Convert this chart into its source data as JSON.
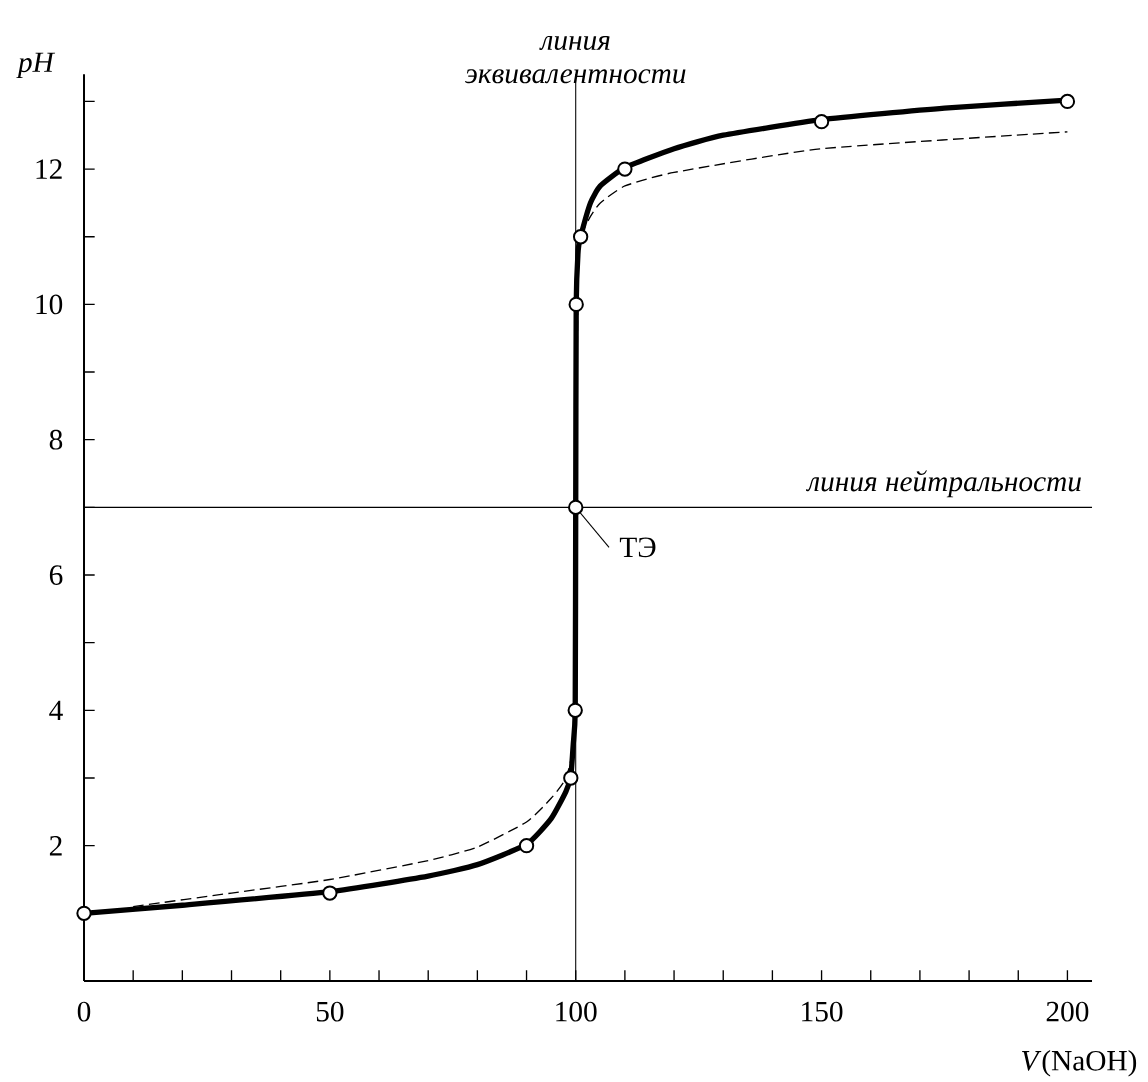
{
  "chart_data": {
    "type": "line",
    "xlabel": "*V*(NaOH)",
    "ylabel": "pH",
    "xlim": [
      0,
      205
    ],
    "ylim": [
      0,
      13.4
    ],
    "xticks": [
      0,
      {
        "value": 10,
        "label": null
      },
      {
        "value": 20,
        "label": null
      },
      {
        "value": 30,
        "label": null
      },
      {
        "value": 40,
        "label": null
      },
      50,
      {
        "value": 60,
        "label": null
      },
      {
        "value": 70,
        "label": null
      },
      {
        "value": 80,
        "label": null
      },
      {
        "value": 90,
        "label": null
      },
      100,
      {
        "value": 110,
        "label": null
      },
      {
        "value": 120,
        "label": null
      },
      {
        "value": 130,
        "label": null
      },
      {
        "value": 140,
        "label": null
      },
      150,
      {
        "value": 160,
        "label": null
      },
      {
        "value": 170,
        "label": null
      },
      {
        "value": 180,
        "label": null
      },
      {
        "value": 190,
        "label": null
      },
      200
    ],
    "yticks": [
      {
        "value": 1,
        "label": null
      },
      2,
      {
        "value": 3,
        "label": null
      },
      4,
      {
        "value": 5,
        "label": null
      },
      6,
      {
        "value": 7,
        "label": null
      },
      8,
      {
        "value": 9,
        "label": null
      },
      10,
      {
        "value": 11,
        "label": null
      },
      12,
      {
        "value": 13,
        "label": null
      }
    ],
    "grid": false,
    "series": [
      {
        "type": "line",
        "color": "#000000",
        "line_style": "solid",
        "marker": "none",
        "x": [
          0,
          20,
          50,
          70,
          80,
          90,
          95,
          98,
          99,
          99.5,
          99.9,
          100,
          100.1,
          100.5,
          101,
          103,
          105,
          110,
          120,
          130,
          150,
          175,
          200
        ],
        "values": [
          1.0,
          1.12,
          1.32,
          1.55,
          1.72,
          2.02,
          2.4,
          2.8,
          3.03,
          3.5,
          4.0,
          7.0,
          10.0,
          10.8,
          11.0,
          11.5,
          11.75,
          12.02,
          12.3,
          12.5,
          12.73,
          12.9,
          13.02
        ]
      },
      {
        "type": "line",
        "color": "#000000",
        "line_style": "dashed",
        "marker": "none",
        "x": [
          10,
          30,
          50,
          70,
          80,
          90,
          95,
          98,
          99.5,
          100,
          100.5,
          101,
          103,
          105,
          110,
          120,
          150,
          200
        ],
        "values": [
          1.1,
          1.3,
          1.5,
          1.78,
          1.98,
          2.35,
          2.7,
          3.0,
          3.6,
          7.0,
          10.5,
          11.0,
          11.3,
          11.5,
          11.75,
          11.95,
          12.3,
          12.55
        ]
      },
      {
        "type": "scatter",
        "color": "#000000",
        "marker": "circle",
        "x": [
          0,
          50,
          90,
          99,
          99.9,
          100,
          100.1,
          101,
          110,
          150,
          200
        ],
        "values": [
          1.0,
          1.3,
          2.0,
          3.0,
          4.0,
          7.0,
          10.0,
          11.0,
          12.0,
          12.7,
          13.0
        ]
      }
    ],
    "ref_lines": [
      {
        "axis": "x",
        "value": 100,
        "label": "линия эквивалентности"
      },
      {
        "axis": "y",
        "value": 7,
        "label": "линия нейтральности"
      }
    ],
    "annotations": [
      {
        "text": "ТЭ",
        "x": 100,
        "y": 7
      }
    ]
  }
}
